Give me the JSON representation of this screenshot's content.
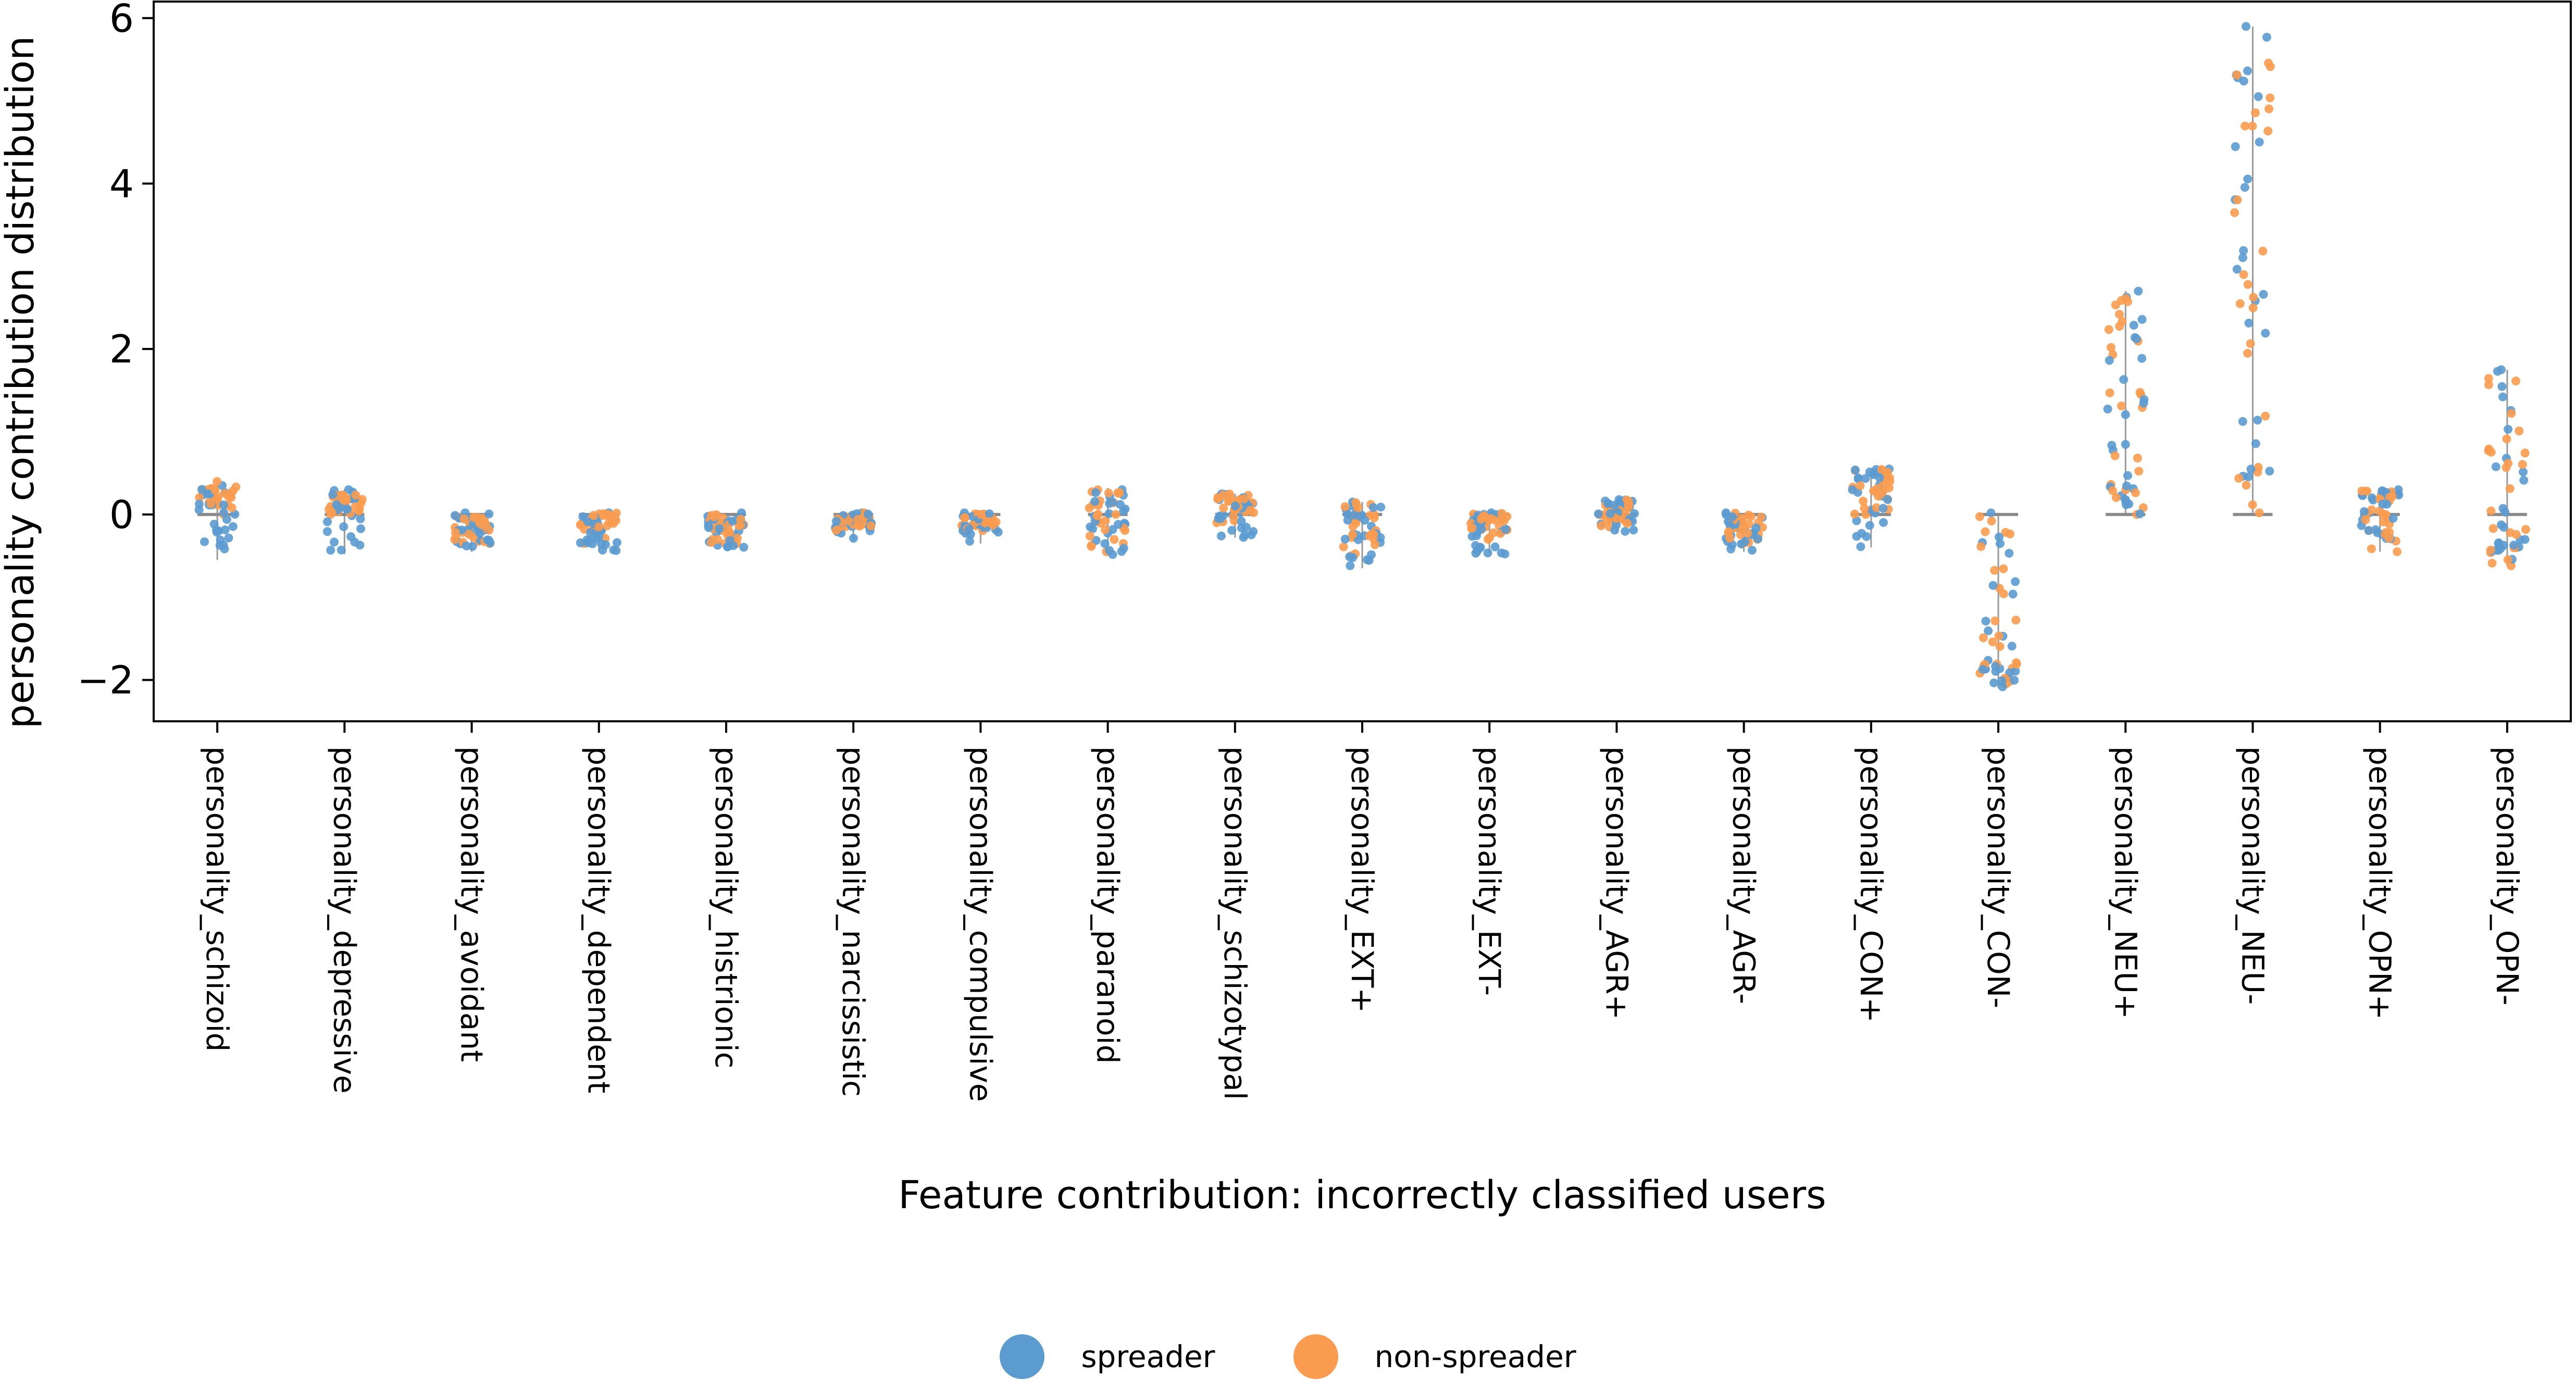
{
  "chart_data": {
    "type": "scatter",
    "subtype": "strip",
    "title": "",
    "xlabel": "Feature contribution: incorrectly classified users",
    "ylabel": "personality contribution distribution",
    "ylim": [
      -2.5,
      6.2
    ],
    "yticks": [
      -2,
      0,
      2,
      4,
      6
    ],
    "ytick_labels": [
      "−2",
      "0",
      "2",
      "4",
      "6"
    ],
    "grid": false,
    "legend_position": "bottom-center",
    "categories": [
      "personality_schizoid",
      "personality_depressive",
      "personality_avoidant",
      "personality_dependent",
      "personality_histrionic",
      "personality_narcissistic",
      "personality_compulsive",
      "personality_paranoid",
      "personality_schizotypal",
      "personality_EXT+",
      "personality_EXT-",
      "personality_AGR+",
      "personality_AGR-",
      "personality_CON+",
      "personality_CON-",
      "personality_NEU+",
      "personality_NEU-",
      "personality_OPN+",
      "personality_OPN-"
    ],
    "series": [
      {
        "name": "spreader",
        "color": "#5b9bd0",
        "min": [
          -0.55,
          -0.48,
          -0.45,
          -0.45,
          -0.42,
          -0.32,
          -0.35,
          -0.5,
          -0.28,
          -0.65,
          -0.48,
          -0.22,
          -0.45,
          -0.4,
          -2.1,
          0.0,
          0.02,
          -0.35,
          -0.55
        ],
        "max": [
          0.35,
          0.3,
          0.02,
          0.02,
          0.02,
          0.02,
          0.02,
          0.3,
          0.25,
          0.15,
          0.02,
          0.18,
          0.02,
          0.55,
          0.02,
          2.7,
          5.9,
          0.3,
          1.75
        ]
      },
      {
        "name": "non-spreader",
        "color": "#fa9c50",
        "min": [
          0.0,
          0.0,
          -0.35,
          -0.35,
          -0.35,
          -0.2,
          -0.2,
          -0.45,
          -0.1,
          -0.5,
          -0.3,
          -0.15,
          -0.35,
          0.0,
          -2.05,
          0.0,
          0.02,
          -0.45,
          -0.62
        ],
        "max": [
          0.4,
          0.28,
          0.02,
          0.02,
          0.02,
          0.02,
          0.02,
          0.32,
          0.25,
          0.15,
          0.02,
          0.18,
          0.02,
          0.55,
          0.02,
          2.65,
          5.7,
          0.3,
          1.75
        ]
      }
    ]
  }
}
